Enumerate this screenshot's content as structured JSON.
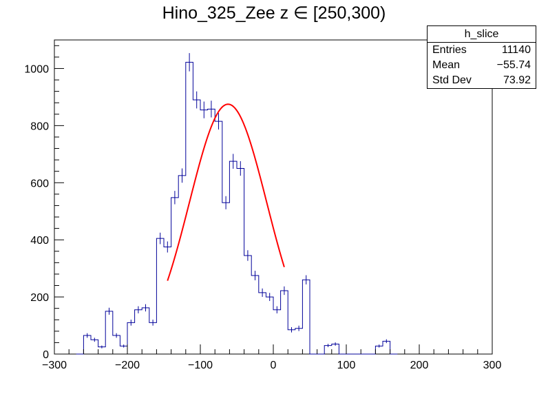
{
  "chart_data": {
    "type": "histogram",
    "title": "Hino_325_Zee z  ∈ [250,300)",
    "xlabel": "",
    "ylabel": "",
    "xlim": [
      -300,
      300
    ],
    "ylim": [
      0,
      1100
    ],
    "x_ticks": [
      -300,
      -200,
      -100,
      0,
      100,
      200,
      300
    ],
    "y_ticks": [
      0,
      200,
      400,
      600,
      800,
      1000
    ],
    "bin_width": 10,
    "bin_edges_start": -270,
    "values": [
      0,
      65,
      50,
      25,
      150,
      65,
      28,
      110,
      155,
      162,
      110,
      405,
      375,
      548,
      625,
      1022,
      890,
      855,
      858,
      815,
      530,
      675,
      650,
      345,
      275,
      215,
      200,
      155,
      222,
      85,
      90,
      260,
      0,
      0,
      30,
      35,
      0,
      0,
      0,
      0,
      0,
      28,
      45,
      0
    ],
    "fit": {
      "type": "gaussian",
      "constant": 875,
      "mean": -62,
      "sigma": 53,
      "x_range": [
        -145,
        15
      ],
      "color": "#ff0000"
    },
    "line_color": "#000099",
    "grid": false,
    "stats_box": {
      "name": "h_slice",
      "rows": [
        {
          "label": "Entries",
          "value": "11140"
        },
        {
          "label": "Mean",
          "value": "−55.74"
        },
        {
          "label": "Std Dev",
          "value": "73.92"
        }
      ]
    }
  }
}
